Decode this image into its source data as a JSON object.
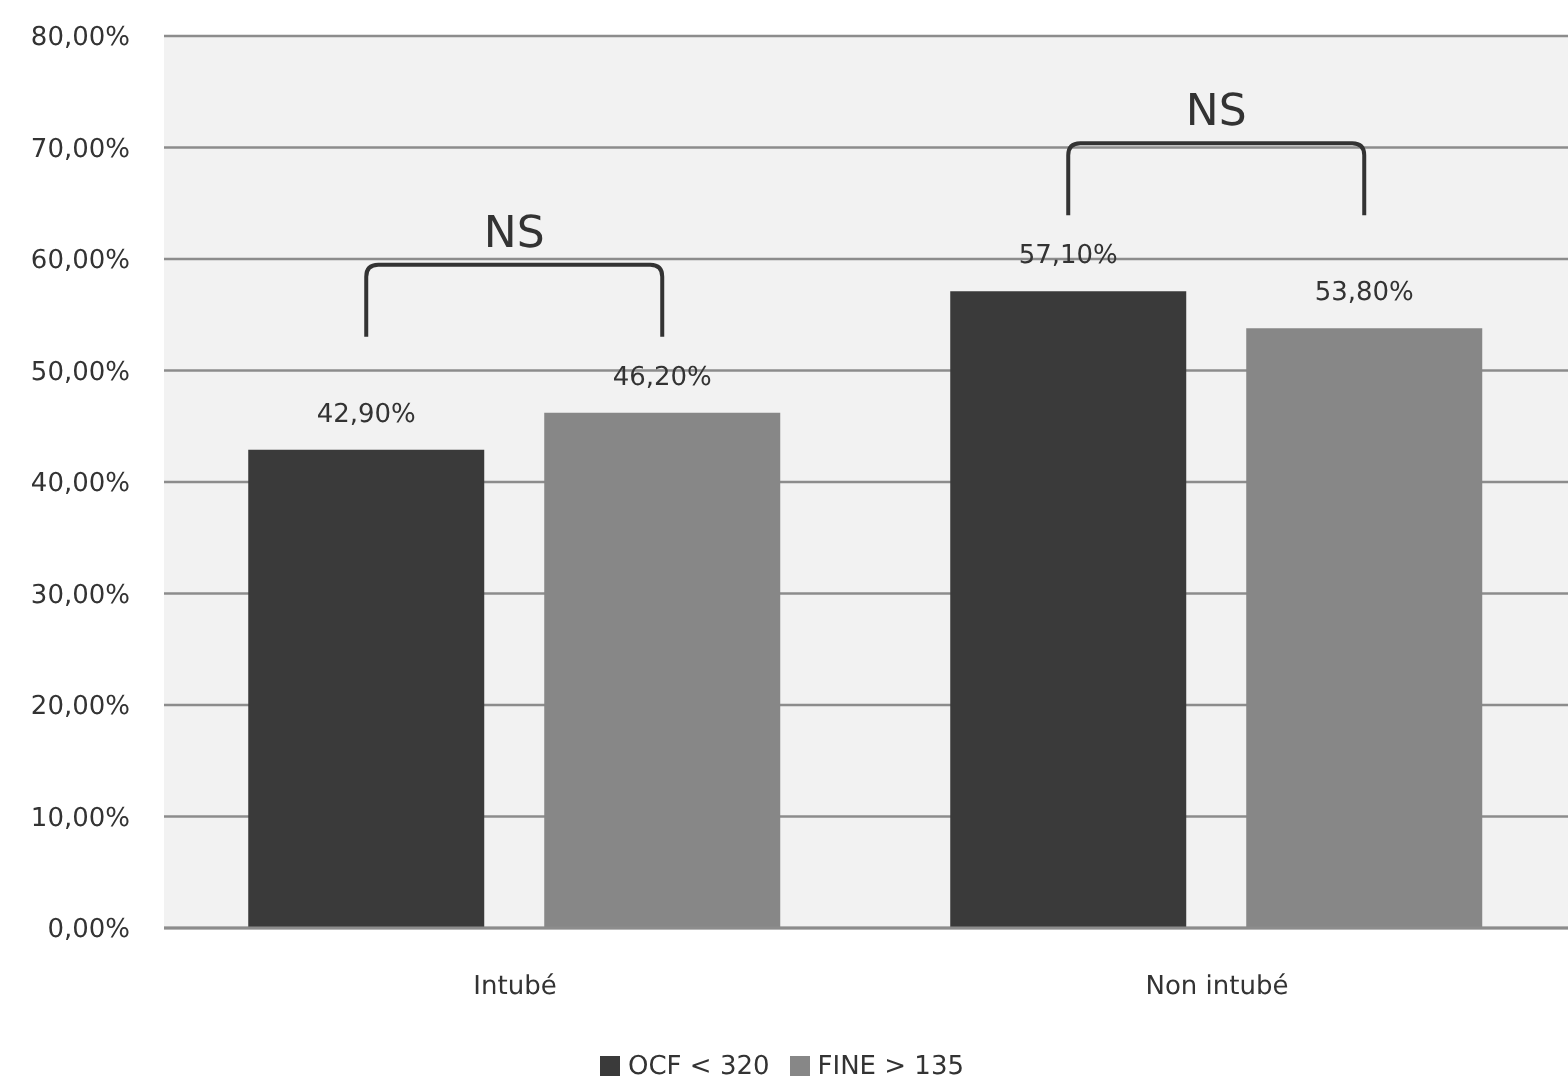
{
  "chart_data": {
    "type": "bar",
    "categories": [
      "Intubé",
      "Non intubé"
    ],
    "series": [
      {
        "name": "OCF < 320",
        "color": "#3a3a3a",
        "values": [
          42.9,
          57.1
        ],
        "value_labels": [
          "42,90%",
          "57,10%"
        ]
      },
      {
        "name": "FINE > 135",
        "color": "#878787",
        "values": [
          46.2,
          53.8
        ],
        "value_labels": [
          "46,20%",
          "53,80%"
        ]
      }
    ],
    "ylim": [
      0,
      80
    ],
    "yticks": [
      {
        "value": 0,
        "label": "0,00%"
      },
      {
        "value": 10,
        "label": "10,00%"
      },
      {
        "value": 20,
        "label": "20,00%"
      },
      {
        "value": 30,
        "label": "30,00%"
      },
      {
        "value": 40,
        "label": "40,00%"
      },
      {
        "value": 50,
        "label": "50,00%"
      },
      {
        "value": 60,
        "label": "60,00%"
      },
      {
        "value": 70,
        "label": "70,00%"
      },
      {
        "value": 80,
        "label": "80,00%"
      }
    ],
    "grid": "y",
    "legend": "bottom",
    "annotations": [
      "NS",
      "NS"
    ]
  }
}
